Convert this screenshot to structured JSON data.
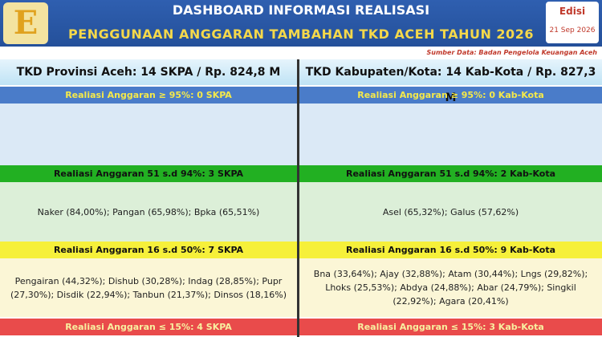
{
  "header": {
    "logo": "E",
    "title": "DASHBOARD INFORMASI REALISASI",
    "subtitle": "PENGGUNAAN ANGGARAN TAMBAHAN TKD ACEH TAHUN 2026",
    "edition_label": "Edisi",
    "edition_date": "21 Sep 2026",
    "source": "Sumber Data: Badan Pengelola Keuangan Aceh"
  },
  "columns": [
    {
      "heading": "TKD Provinsi Aceh: 14 SKPA / Rp. 824,8 M",
      "sections": [
        {
          "label": "Realiasi Anggaran ≥ 95%: 0 SKPA"
        },
        {
          "label": "Realiasi Anggaran 51 s.d 94%: 3 SKPA",
          "items": "Naker (84,00%); Pangan (65,98%); Bpka (65,51%)"
        },
        {
          "label": "Realiasi Anggaran 16 s.d 50%: 7 SKPA",
          "items": "Pengairan (44,32%); Dishub (30,28%); Indag (28,85%); Pupr (27,30%); Disdik (22,94%); Tanbun (21,37%); Dinsos (18,16%)"
        },
        {
          "label": "Realiasi Anggaran ≤ 15%: 4 SKPA"
        }
      ]
    },
    {
      "heading": "TKD Kabupaten/Kota: 14 Kab-Kota / Rp. 827,3 M",
      "sections": [
        {
          "label": "Realiasi Anggaran ≥ 95%: 0 Kab-Kota"
        },
        {
          "label": "Realiasi Anggaran 51 s.d 94%: 2 Kab-Kota",
          "items": "Asel (65,32%); Galus (57,62%)"
        },
        {
          "label": "Realiasi Anggaran 16 s.d 50%: 9 Kab-Kota",
          "items": "Bna (33,64%); Ajay (32,88%); Atam (30,44%); Lngs (29,82%); Lhoks (25,53%); Abdya (24,88%); Abar (24,79%); Singkil (22,92%); Agara (20,41%)"
        },
        {
          "label": "Realiasi Anggaran ≤ 15%: 3 Kab-Kota"
        }
      ]
    }
  ]
}
